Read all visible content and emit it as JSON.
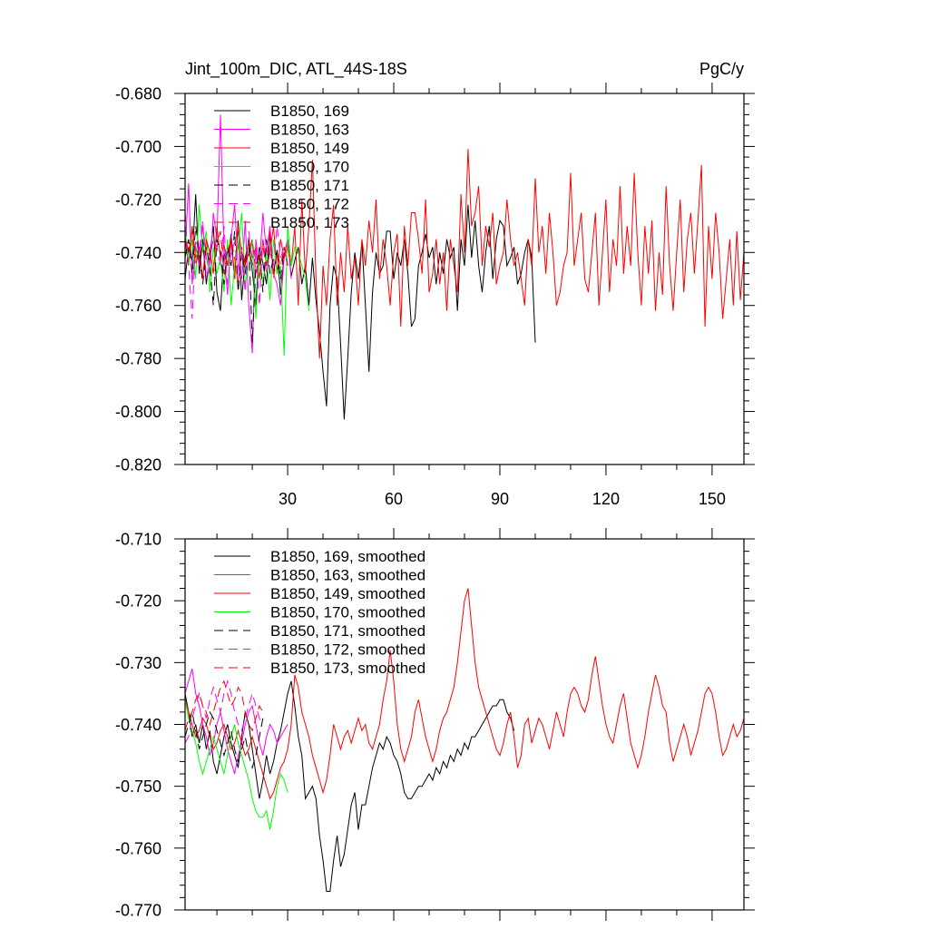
{
  "chart_data": [
    {
      "type": "line",
      "title_left": "Jint_100m_DIC, ATL_44S-18S",
      "title_right": "PgC/y",
      "xlabel": "",
      "ylabel": "",
      "xlim": [
        1,
        159
      ],
      "ylim": [
        -0.82,
        -0.68
      ],
      "xticks": [
        30,
        60,
        90,
        120,
        150
      ],
      "xtick_labels": [
        "30",
        "60",
        "90",
        "120",
        "150"
      ],
      "yticks": [
        -0.68,
        -0.7,
        -0.72,
        -0.74,
        -0.76,
        -0.78,
        -0.8,
        -0.82
      ],
      "ytick_labels": [
        "-0.680",
        "-0.700",
        "-0.720",
        "-0.740",
        "-0.760",
        "-0.780",
        "-0.800",
        "-0.820"
      ],
      "legend_position": "top-left",
      "series": [
        {
          "name": "B1850, 169",
          "color": "#000000",
          "dash": "solid",
          "values": [
            -0.75,
            -0.738,
            -0.743,
            -0.718,
            -0.748,
            -0.735,
            -0.752,
            -0.741,
            -0.73,
            -0.755,
            -0.762,
            -0.74,
            -0.745,
            -0.733,
            -0.75,
            -0.728,
            -0.758,
            -0.742,
            -0.736,
            -0.747,
            -0.76,
            -0.738,
            -0.744,
            -0.752,
            -0.733,
            -0.748,
            -0.739,
            -0.756,
            -0.741,
            -0.735,
            -0.749,
            -0.743,
            -0.738,
            -0.752,
            -0.745,
            -0.76,
            -0.742,
            -0.758,
            -0.77,
            -0.785,
            -0.798,
            -0.76,
            -0.745,
            -0.75,
            -0.775,
            -0.803,
            -0.78,
            -0.755,
            -0.74,
            -0.75,
            -0.736,
            -0.76,
            -0.785,
            -0.755,
            -0.74,
            -0.748,
            -0.745,
            -0.732,
            -0.732,
            -0.75,
            -0.74,
            -0.745,
            -0.735,
            -0.748,
            -0.768,
            -0.765,
            -0.745,
            -0.74,
            -0.733,
            -0.742,
            -0.738,
            -0.752,
            -0.74,
            -0.748,
            -0.735,
            -0.742,
            -0.738,
            -0.762,
            -0.735,
            -0.745,
            -0.722,
            -0.742,
            -0.728,
            -0.745,
            -0.755,
            -0.74,
            -0.73,
            -0.75,
            -0.735,
            -0.728,
            -0.73,
            -0.745,
            -0.742,
            -0.738,
            -0.752,
            -0.748,
            -0.74,
            -0.735,
            -0.742,
            -0.774
          ]
        },
        {
          "name": "B1850, 163",
          "color": "#ff00ff",
          "dash": "solid",
          "values": [
            -0.74,
            -0.714,
            -0.752,
            -0.738,
            -0.745,
            -0.73,
            -0.742,
            -0.748,
            -0.725,
            -0.735,
            -0.688,
            -0.74,
            -0.756,
            -0.735,
            -0.722,
            -0.745,
            -0.75,
            -0.728,
            -0.76,
            -0.778,
            -0.735,
            -0.745,
            -0.725,
            -0.74,
            -0.73,
            -0.748,
            -0.752,
            -0.76,
            -0.742,
            -0.735,
            -0.75
          ]
        },
        {
          "name": "B1850, 149",
          "color": "#ff0000",
          "dash": "solid",
          "values": [
            -0.735,
            -0.745,
            -0.73,
            -0.742,
            -0.738,
            -0.75,
            -0.735,
            -0.74,
            -0.748,
            -0.73,
            -0.742,
            -0.737,
            -0.745,
            -0.735,
            -0.75,
            -0.73,
            -0.74,
            -0.745,
            -0.735,
            -0.742,
            -0.738,
            -0.75,
            -0.735,
            -0.745,
            -0.74,
            -0.73,
            -0.748,
            -0.735,
            -0.742,
            -0.738,
            -0.745,
            -0.73,
            -0.76,
            -0.72,
            -0.748,
            -0.73,
            -0.705,
            -0.75,
            -0.78,
            -0.745,
            -0.76,
            -0.735,
            -0.722,
            -0.76,
            -0.74,
            -0.755,
            -0.73,
            -0.75,
            -0.742,
            -0.76,
            -0.735,
            -0.745,
            -0.728,
            -0.74,
            -0.72,
            -0.75,
            -0.735,
            -0.745,
            -0.76,
            -0.74,
            -0.733,
            -0.768,
            -0.73,
            -0.745,
            -0.725,
            -0.725,
            -0.735,
            -0.748,
            -0.72,
            -0.755,
            -0.748,
            -0.735,
            -0.752,
            -0.74,
            -0.762,
            -0.735,
            -0.745,
            -0.755,
            -0.718,
            -0.74,
            -0.701,
            -0.73,
            -0.725,
            -0.715,
            -0.745,
            -0.73,
            -0.738,
            -0.725,
            -0.752,
            -0.745,
            -0.74,
            -0.72,
            -0.735,
            -0.745,
            -0.74,
            -0.75,
            -0.76,
            -0.735,
            -0.745,
            -0.712,
            -0.74,
            -0.73,
            -0.748,
            -0.725,
            -0.74,
            -0.76,
            -0.755,
            -0.745,
            -0.74,
            -0.71,
            -0.745,
            -0.735,
            -0.725,
            -0.75,
            -0.755,
            -0.74,
            -0.725,
            -0.76,
            -0.74,
            -0.72,
            -0.755,
            -0.735,
            -0.745,
            -0.715,
            -0.748,
            -0.73,
            -0.745,
            -0.71,
            -0.74,
            -0.76,
            -0.73,
            -0.748,
            -0.728,
            -0.762,
            -0.74,
            -0.756,
            -0.715,
            -0.745,
            -0.762,
            -0.74,
            -0.72,
            -0.755,
            -0.735,
            -0.725,
            -0.748,
            -0.728,
            -0.707,
            -0.768,
            -0.73,
            -0.75,
            -0.725,
            -0.74,
            -0.765,
            -0.75,
            -0.735,
            -0.76,
            -0.732,
            -0.758,
            -0.74,
            -0.725,
            -0.722,
            -0.767,
            -0.722
          ]
        },
        {
          "name": "B1850, 170",
          "color": "#00ff00",
          "dash": "solid",
          "values": [
            -0.73,
            -0.745,
            -0.735,
            -0.75,
            -0.722,
            -0.74,
            -0.732,
            -0.755,
            -0.738,
            -0.748,
            -0.742,
            -0.755,
            -0.735,
            -0.76,
            -0.745,
            -0.738,
            -0.725,
            -0.752,
            -0.745,
            -0.735,
            -0.765,
            -0.74,
            -0.752,
            -0.74,
            -0.758,
            -0.735,
            -0.748,
            -0.745,
            -0.779,
            -0.73,
            -0.745,
            -0.738,
            -0.74,
            -0.745,
            -0.75,
            -0.762
          ]
        },
        {
          "name": "B1850, 171",
          "color": "#000000",
          "dash": "dashed",
          "values": [
            -0.742,
            -0.735,
            -0.748,
            -0.73,
            -0.74,
            -0.752,
            -0.738,
            -0.745,
            -0.76,
            -0.735,
            -0.74,
            -0.752,
            -0.738,
            -0.745,
            -0.732,
            -0.755,
            -0.74,
            -0.748,
            -0.735,
            -0.774,
            -0.745,
            -0.74,
            -0.755,
            -0.735,
            -0.748,
            -0.742,
            -0.74,
            -0.75,
            -0.738,
            -0.745
          ]
        },
        {
          "name": "B1850, 172",
          "color": "#ff00ff",
          "dash": "dashed",
          "values": [
            -0.725,
            -0.745,
            -0.765,
            -0.735,
            -0.74,
            -0.728,
            -0.75,
            -0.742,
            -0.735,
            -0.738,
            -0.745,
            -0.73,
            -0.752,
            -0.74,
            -0.736,
            -0.748,
            -0.74,
            -0.755,
            -0.732,
            -0.745,
            -0.738,
            -0.76,
            -0.735,
            -0.748,
            -0.74,
            -0.745,
            -0.73,
            -0.742,
            -0.738,
            -0.745
          ]
        },
        {
          "name": "B1850, 173",
          "color": "#ff0000",
          "dash": "dashed",
          "values": [
            -0.735,
            -0.74,
            -0.732,
            -0.745,
            -0.738,
            -0.75,
            -0.735,
            -0.742,
            -0.745,
            -0.738,
            -0.732,
            -0.748,
            -0.74,
            -0.735,
            -0.742,
            -0.752,
            -0.738,
            -0.745,
            -0.74,
            -0.735,
            -0.748,
            -0.742,
            -0.738,
            -0.745,
            -0.732,
            -0.75,
            -0.74,
            -0.745,
            -0.738,
            -0.745
          ]
        }
      ]
    },
    {
      "type": "line",
      "title_left": "",
      "title_right": "",
      "xlabel": "",
      "ylabel": "",
      "xlim": [
        1,
        159
      ],
      "ylim": [
        -0.77,
        -0.71
      ],
      "xticks": [
        30,
        60,
        90,
        120,
        150
      ],
      "xtick_labels": [],
      "yticks": [
        -0.71,
        -0.72,
        -0.73,
        -0.74,
        -0.75,
        -0.76,
        -0.77
      ],
      "ytick_labels": [
        "-0.710",
        "-0.720",
        "-0.730",
        "-0.740",
        "-0.750",
        "-0.760",
        "-0.770"
      ],
      "legend_position": "top-left",
      "series": [
        {
          "name": "B1850, 169, smoothed",
          "color": "#000000",
          "dash": "solid",
          "values": [
            -0.735,
            -0.738,
            -0.742,
            -0.74,
            -0.743,
            -0.74,
            -0.744,
            -0.741,
            -0.746,
            -0.748,
            -0.745,
            -0.742,
            -0.74,
            -0.743,
            -0.745,
            -0.747,
            -0.742,
            -0.738,
            -0.74,
            -0.744,
            -0.748,
            -0.752,
            -0.749,
            -0.745,
            -0.748,
            -0.746,
            -0.743,
            -0.741,
            -0.738,
            -0.735,
            -0.733,
            -0.737,
            -0.742,
            -0.745,
            -0.752,
            -0.751,
            -0.75,
            -0.752,
            -0.758,
            -0.762,
            -0.767,
            -0.767,
            -0.762,
            -0.758,
            -0.763,
            -0.761,
            -0.757,
            -0.753,
            -0.751,
            -0.757,
            -0.753,
            -0.753,
            -0.75,
            -0.747,
            -0.745,
            -0.743,
            -0.744,
            -0.742,
            -0.743,
            -0.745,
            -0.746,
            -0.748,
            -0.751,
            -0.752,
            -0.752,
            -0.751,
            -0.75,
            -0.75,
            -0.749,
            -0.748,
            -0.749,
            -0.747,
            -0.748,
            -0.746,
            -0.747,
            -0.745,
            -0.746,
            -0.744,
            -0.745,
            -0.743,
            -0.744,
            -0.742,
            -0.742,
            -0.741,
            -0.74,
            -0.739,
            -0.738,
            -0.737,
            -0.737,
            -0.736,
            -0.736,
            -0.738,
            -0.739,
            -0.741
          ]
        },
        {
          "name": "B1850, 163, smoothed",
          "color": "#ff00ff",
          "dash": "solid",
          "values": [
            -0.735,
            -0.733,
            -0.731,
            -0.735,
            -0.737,
            -0.74,
            -0.742,
            -0.745,
            -0.743,
            -0.74,
            -0.738,
            -0.741,
            -0.744,
            -0.746,
            -0.748,
            -0.745,
            -0.743,
            -0.74,
            -0.738,
            -0.737,
            -0.74,
            -0.743,
            -0.745,
            -0.742,
            -0.74,
            -0.741,
            -0.743,
            -0.742,
            -0.741,
            -0.74
          ]
        },
        {
          "name": "B1850, 149, smoothed",
          "color": "#ff0000",
          "dash": "solid",
          "values": [
            -0.736,
            -0.738,
            -0.74,
            -0.742,
            -0.741,
            -0.739,
            -0.74,
            -0.742,
            -0.744,
            -0.743,
            -0.741,
            -0.74,
            -0.742,
            -0.744,
            -0.743,
            -0.741,
            -0.743,
            -0.745,
            -0.744,
            -0.742,
            -0.744,
            -0.746,
            -0.748,
            -0.75,
            -0.752,
            -0.751,
            -0.749,
            -0.747,
            -0.746,
            -0.744,
            -0.74,
            -0.732,
            -0.734,
            -0.738,
            -0.74,
            -0.742,
            -0.745,
            -0.747,
            -0.749,
            -0.751,
            -0.749,
            -0.745,
            -0.74,
            -0.742,
            -0.744,
            -0.742,
            -0.741,
            -0.743,
            -0.741,
            -0.739,
            -0.741,
            -0.74,
            -0.743,
            -0.744,
            -0.742,
            -0.74,
            -0.736,
            -0.733,
            -0.728,
            -0.733,
            -0.74,
            -0.744,
            -0.746,
            -0.744,
            -0.742,
            -0.738,
            -0.736,
            -0.739,
            -0.742,
            -0.744,
            -0.746,
            -0.744,
            -0.741,
            -0.739,
            -0.738,
            -0.736,
            -0.734,
            -0.73,
            -0.725,
            -0.72,
            -0.718,
            -0.724,
            -0.73,
            -0.734,
            -0.736,
            -0.738,
            -0.74,
            -0.742,
            -0.744,
            -0.745,
            -0.743,
            -0.74,
            -0.738,
            -0.742,
            -0.747,
            -0.745,
            -0.74,
            -0.739,
            -0.743,
            -0.741,
            -0.739,
            -0.74,
            -0.742,
            -0.744,
            -0.741,
            -0.738,
            -0.74,
            -0.742,
            -0.738,
            -0.735,
            -0.734,
            -0.735,
            -0.737,
            -0.738,
            -0.736,
            -0.732,
            -0.729,
            -0.733,
            -0.737,
            -0.74,
            -0.742,
            -0.743,
            -0.74,
            -0.737,
            -0.735,
            -0.739,
            -0.743,
            -0.745,
            -0.747,
            -0.745,
            -0.742,
            -0.738,
            -0.735,
            -0.732,
            -0.734,
            -0.737,
            -0.738,
            -0.743,
            -0.746,
            -0.744,
            -0.742,
            -0.74,
            -0.742,
            -0.745,
            -0.743,
            -0.741,
            -0.738,
            -0.735,
            -0.734,
            -0.735,
            -0.738,
            -0.742,
            -0.745,
            -0.744,
            -0.742,
            -0.74,
            -0.742,
            -0.741,
            -0.739
          ]
        },
        {
          "name": "B1850, 170, smoothed",
          "color": "#00ff00",
          "dash": "solid",
          "values": [
            -0.736,
            -0.739,
            -0.741,
            -0.743,
            -0.746,
            -0.748,
            -0.746,
            -0.744,
            -0.742,
            -0.744,
            -0.746,
            -0.748,
            -0.745,
            -0.742,
            -0.74,
            -0.743,
            -0.745,
            -0.747,
            -0.749,
            -0.752,
            -0.754,
            -0.755,
            -0.755,
            -0.754,
            -0.757,
            -0.754,
            -0.75,
            -0.748,
            -0.749,
            -0.751
          ]
        },
        {
          "name": "B1850, 171, smoothed",
          "color": "#000000",
          "dash": "dashed",
          "values": [
            -0.742,
            -0.74,
            -0.738,
            -0.741,
            -0.744,
            -0.742,
            -0.74,
            -0.738,
            -0.739,
            -0.741,
            -0.743,
            -0.745,
            -0.743,
            -0.741,
            -0.744,
            -0.746,
            -0.744,
            -0.742,
            -0.745,
            -0.747,
            -0.745,
            -0.742,
            -0.739
          ]
        },
        {
          "name": "B1850, 172, smoothed",
          "color": "#ff00ff",
          "dash": "dashed",
          "values": [
            -0.743,
            -0.742,
            -0.739,
            -0.737,
            -0.735,
            -0.737,
            -0.739,
            -0.736,
            -0.734,
            -0.736,
            -0.738,
            -0.735,
            -0.733,
            -0.735,
            -0.738,
            -0.74,
            -0.741,
            -0.739,
            -0.737,
            -0.735,
            -0.737,
            -0.739,
            -0.74
          ]
        },
        {
          "name": "B1850, 173, smoothed",
          "color": "#ff0000",
          "dash": "dashed",
          "values": [
            -0.741,
            -0.739,
            -0.738,
            -0.736,
            -0.735,
            -0.737,
            -0.738,
            -0.74,
            -0.738,
            -0.736,
            -0.734,
            -0.733,
            -0.735,
            -0.737,
            -0.736,
            -0.734,
            -0.735,
            -0.738,
            -0.74,
            -0.741,
            -0.739,
            -0.737,
            -0.738
          ]
        }
      ]
    }
  ]
}
